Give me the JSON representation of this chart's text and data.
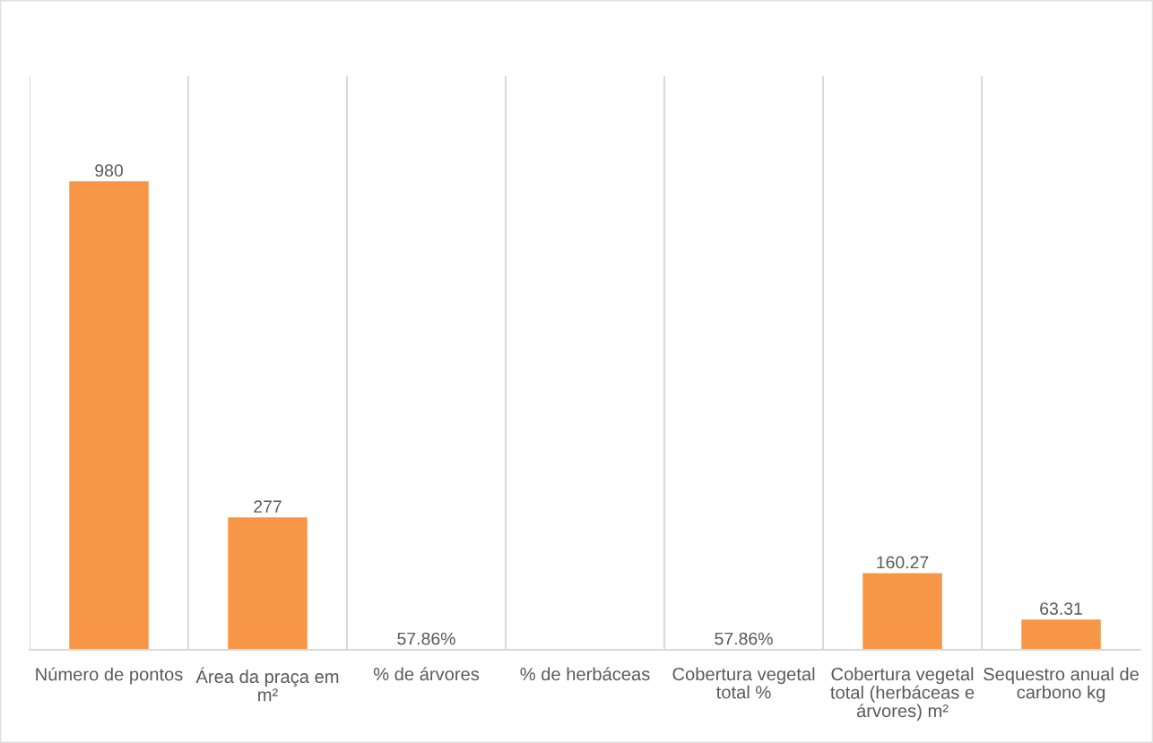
{
  "chart_data": {
    "type": "bar",
    "categories": [
      "Número de pontos",
      "Área da praça em m²",
      "% de árvores",
      "% de herbáceas",
      "Cobertura vegetal total %",
      "Cobertura vegetal total (herbáceas e árvores) m²",
      "Sequestro anual de carbono kg"
    ],
    "values": [
      980,
      277,
      0.5786,
      null,
      0.5786,
      160.27,
      63.31
    ],
    "value_labels": [
      "980",
      "277",
      "57.86%",
      null,
      "57.86%",
      "160.27",
      "63.31"
    ],
    "color": "#f79646",
    "ylim": [
      0,
      1200
    ],
    "tick_labels": "x",
    "grid": "x"
  }
}
